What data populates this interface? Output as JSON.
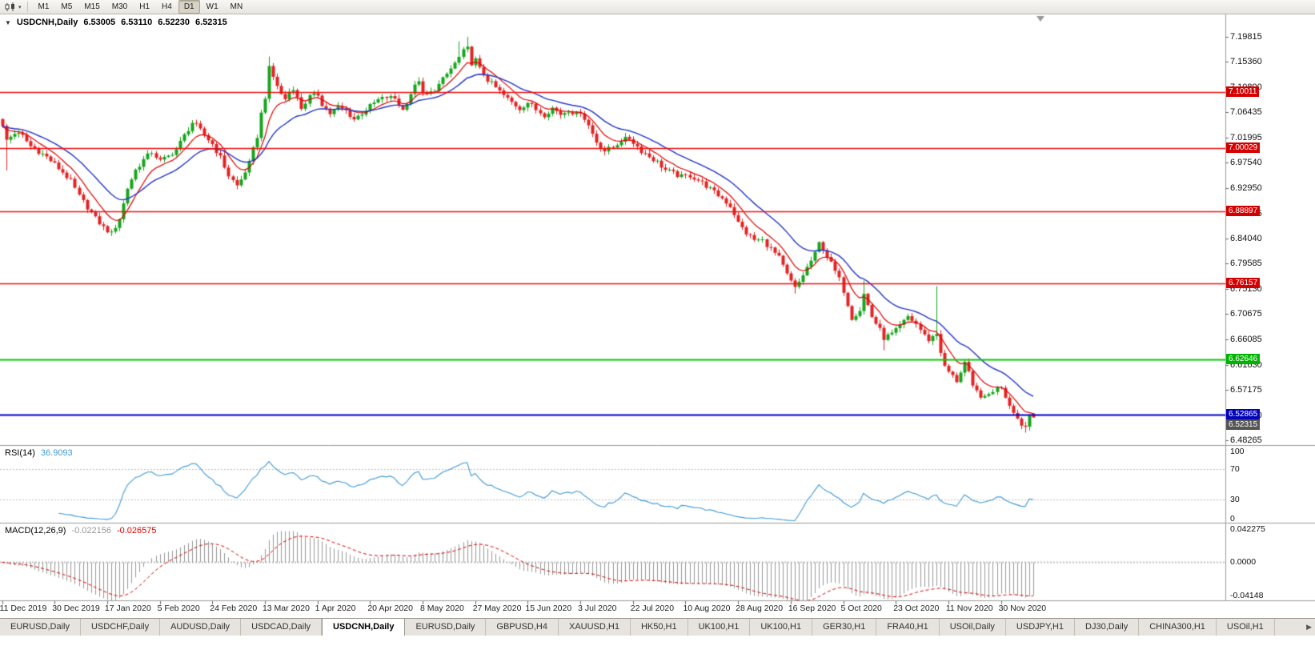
{
  "toolbar": {
    "dropdown_arrow": "▾",
    "timeframes": [
      {
        "label": "M1",
        "active": false
      },
      {
        "label": "M5",
        "active": false
      },
      {
        "label": "M15",
        "active": false
      },
      {
        "label": "M30",
        "active": false
      },
      {
        "label": "H1",
        "active": false
      },
      {
        "label": "H4",
        "active": false
      },
      {
        "label": "D1",
        "active": true
      },
      {
        "label": "W1",
        "active": false
      },
      {
        "label": "MN",
        "active": false
      }
    ]
  },
  "chart_header": {
    "collapse_icon": "▼",
    "symbol": "USDCNH,Daily",
    "open": "6.53005",
    "high": "6.53110",
    "low": "6.52230",
    "close": "6.52315"
  },
  "price_axis": {
    "labels": [
      "7.19815",
      "7.15360",
      "7.10890",
      "7.06435",
      "7.01995",
      "6.97540",
      "6.92950",
      "6.88495",
      "6.84040",
      "6.79585",
      "6.75130",
      "6.70675",
      "6.66085",
      "6.61630",
      "6.57175",
      "6.52720",
      "6.48265"
    ]
  },
  "hlines": [
    {
      "label": "7.10011",
      "price": 7.10011,
      "line_color": "#ee1111",
      "tag_color": "#d40000",
      "width": 1.5
    },
    {
      "label": "7.00029",
      "price": 7.00029,
      "line_color": "#ee1111",
      "tag_color": "#d40000",
      "width": 1.5
    },
    {
      "label": "6.88897",
      "price": 6.88897,
      "line_color": "#ee1111",
      "tag_color": "#d40000",
      "width": 1.5
    },
    {
      "label": "6.76157",
      "price": 6.76157,
      "line_color": "#ee1111",
      "tag_color": "#d40000",
      "width": 1.5
    },
    {
      "label": "6.62646",
      "price": 6.62646,
      "line_color": "#00cc00",
      "tag_color": "#00b400",
      "width": 2
    },
    {
      "label": "6.52865",
      "price": 6.52865,
      "line_color": "#0000cc",
      "tag_color": "#0000bb",
      "width": 2
    }
  ],
  "current_price_tag": {
    "label": "6.52315",
    "price": 6.52315,
    "tag_color": "#555555"
  },
  "date_axis": {
    "labels": [
      "11 Dec 2019",
      "30 Dec 2019",
      "17 Jan 2020",
      "5 Feb 2020",
      "24 Feb 2020",
      "13 Mar 2020",
      "1 Apr 2020",
      "20 Apr 2020",
      "8 May 2020",
      "27 May 2020",
      "15 Jun 2020",
      "3 Jul 2020",
      "22 Jul 2020",
      "10 Aug 2020",
      "28 Aug 2020",
      "16 Sep 2020",
      "5 Oct 2020",
      "23 Oct 2020",
      "11 Nov 2020",
      "30 Nov 2020"
    ]
  },
  "rsi_panel": {
    "name": "RSI(14)",
    "value": "36.9093",
    "line_color": "#3f9ad8",
    "levels": [
      {
        "label": "100",
        "value": 100
      },
      {
        "label": "70",
        "value": 70
      },
      {
        "label": "30",
        "value": 30
      },
      {
        "label": "0",
        "value": 0
      }
    ]
  },
  "macd_panel": {
    "name": "MACD(12,26,9)",
    "main_value": "-0.022156",
    "signal_value": "-0.026575",
    "hist_color": "#979797",
    "signal_color": "#dd0000",
    "axis_labels": [
      {
        "label": "0.042275",
        "value": 0.042275
      },
      {
        "label": "0.0000",
        "value": 0
      },
      {
        "label": "-0.04148",
        "value": -0.04148
      }
    ]
  },
  "tabs": {
    "scroll_right": "▶",
    "items": [
      {
        "label": "EURUSD,Daily",
        "active": false
      },
      {
        "label": "USDCHF,Daily",
        "active": false
      },
      {
        "label": "AUDUSD,Daily",
        "active": false
      },
      {
        "label": "USDCAD,Daily",
        "active": false
      },
      {
        "label": "USDCNH,Daily",
        "active": true
      },
      {
        "label": "EURUSD,Daily",
        "active": false
      },
      {
        "label": "GBPUSD,H4",
        "active": false
      },
      {
        "label": "XAUUSD,H1",
        "active": false
      },
      {
        "label": "HK50,H1",
        "active": false
      },
      {
        "label": "UK100,H1",
        "active": false
      },
      {
        "label": "UK100,H1",
        "active": false
      },
      {
        "label": "GER30,H1",
        "active": false
      },
      {
        "label": "FRA40,H1",
        "active": false
      },
      {
        "label": "USOil,Daily",
        "active": false
      },
      {
        "label": "USDJPY,H1",
        "active": false
      },
      {
        "label": "DJ30,Daily",
        "active": false
      },
      {
        "label": "CHINA300,H1",
        "active": false
      },
      {
        "label": "USOil,H1",
        "active": false
      }
    ]
  },
  "chart_data": {
    "type": "candlestick",
    "symbol": "USDCNH",
    "timeframe": "Daily",
    "n_candles": 256,
    "right_margin_candles": 47,
    "price_min": 6.4741,
    "price_max": 7.2379,
    "up_color": "#17a51d",
    "down_color": "#e42222",
    "ma_fast": {
      "type": "EMA",
      "period": 8,
      "color": "#e00000"
    },
    "ma_slow": {
      "type": "EMA",
      "period": 20,
      "color": "#2335cb"
    },
    "rsi_period": 14,
    "macd": [
      12,
      26,
      9
    ],
    "macd_range": [
      -0.04148,
      0.042275
    ],
    "noise": 0.009,
    "date_label_step": 13,
    "close_path": [
      [
        0,
        7.038
      ],
      [
        1,
        7.015
      ],
      [
        3,
        7.028
      ],
      [
        5,
        7.022
      ],
      [
        7,
        7.004
      ],
      [
        9,
        6.995
      ],
      [
        11,
        6.985
      ],
      [
        13,
        6.972
      ],
      [
        15,
        6.958
      ],
      [
        17,
        6.942
      ],
      [
        19,
        6.915
      ],
      [
        21,
        6.896
      ],
      [
        23,
        6.876
      ],
      [
        25,
        6.86
      ],
      [
        27,
        6.849
      ],
      [
        28,
        6.862
      ],
      [
        29,
        6.876
      ],
      [
        30,
        6.902
      ],
      [
        31,
        6.93
      ],
      [
        33,
        6.962
      ],
      [
        35,
        6.98
      ],
      [
        37,
        6.994
      ],
      [
        39,
        6.978
      ],
      [
        41,
        6.986
      ],
      [
        43,
        6.999
      ],
      [
        45,
        7.023
      ],
      [
        47,
        7.046
      ],
      [
        48,
        7.04
      ],
      [
        50,
        7.024
      ],
      [
        52,
        7.008
      ],
      [
        54,
        6.984
      ],
      [
        56,
        6.952
      ],
      [
        58,
        6.934
      ],
      [
        59,
        6.945
      ],
      [
        61,
        6.974
      ],
      [
        63,
        7.022
      ],
      [
        64,
        7.062
      ],
      [
        65,
        7.092
      ],
      [
        66,
        7.142
      ],
      [
        67,
        7.127
      ],
      [
        68,
        7.112
      ],
      [
        69,
        7.096
      ],
      [
        70,
        7.088
      ],
      [
        71,
        7.101
      ],
      [
        72,
        7.108
      ],
      [
        73,
        7.089
      ],
      [
        74,
        7.072
      ],
      [
        76,
        7.092
      ],
      [
        78,
        7.096
      ],
      [
        79,
        7.079
      ],
      [
        81,
        7.062
      ],
      [
        83,
        7.073
      ],
      [
        85,
        7.067
      ],
      [
        87,
        7.052
      ],
      [
        89,
        7.063
      ],
      [
        91,
        7.075
      ],
      [
        93,
        7.086
      ],
      [
        95,
        7.091
      ],
      [
        97,
        7.089
      ],
      [
        99,
        7.068
      ],
      [
        101,
        7.098
      ],
      [
        103,
        7.122
      ],
      [
        104,
        7.095
      ],
      [
        106,
        7.099
      ],
      [
        108,
        7.113
      ],
      [
        110,
        7.132
      ],
      [
        112,
        7.151
      ],
      [
        114,
        7.172
      ],
      [
        115,
        7.177
      ],
      [
        116,
        7.152
      ],
      [
        117,
        7.157
      ],
      [
        118,
        7.141
      ],
      [
        120,
        7.122
      ],
      [
        122,
        7.108
      ],
      [
        124,
        7.094
      ],
      [
        126,
        7.082
      ],
      [
        128,
        7.071
      ],
      [
        130,
        7.082
      ],
      [
        132,
        7.069
      ],
      [
        134,
        7.06
      ],
      [
        136,
        7.072
      ],
      [
        138,
        7.061
      ],
      [
        140,
        7.068
      ],
      [
        142,
        7.061
      ],
      [
        143,
        7.066
      ],
      [
        145,
        7.041
      ],
      [
        147,
        7.012
      ],
      [
        149,
        6.996
      ],
      [
        151,
        7.002
      ],
      [
        153,
        7.015
      ],
      [
        155,
        7.018
      ],
      [
        156,
        7.011
      ],
      [
        158,
        6.996
      ],
      [
        160,
        6.986
      ],
      [
        162,
        6.976
      ],
      [
        164,
        6.962
      ],
      [
        166,
        6.956
      ],
      [
        168,
        6.95
      ],
      [
        170,
        6.952
      ],
      [
        172,
        6.944
      ],
      [
        174,
        6.934
      ],
      [
        176,
        6.922
      ],
      [
        178,
        6.912
      ],
      [
        180,
        6.898
      ],
      [
        181,
        6.884
      ],
      [
        182,
        6.868
      ],
      [
        184,
        6.85
      ],
      [
        186,
        6.838
      ],
      [
        188,
        6.837
      ],
      [
        190,
        6.822
      ],
      [
        192,
        6.806
      ],
      [
        194,
        6.776
      ],
      [
        196,
        6.752
      ],
      [
        197,
        6.763
      ],
      [
        199,
        6.789
      ],
      [
        201,
        6.813
      ],
      [
        202,
        6.832
      ],
      [
        203,
        6.823
      ],
      [
        205,
        6.796
      ],
      [
        207,
        6.768
      ],
      [
        208,
        6.748
      ],
      [
        210,
        6.7
      ],
      [
        212,
        6.714
      ],
      [
        213,
        6.742
      ],
      [
        214,
        6.722
      ],
      [
        215,
        6.702
      ],
      [
        217,
        6.678
      ],
      [
        218,
        6.664
      ],
      [
        220,
        6.671
      ],
      [
        221,
        6.677
      ],
      [
        223,
        6.693
      ],
      [
        224,
        6.702
      ],
      [
        226,
        6.689
      ],
      [
        228,
        6.668
      ],
      [
        229,
        6.661
      ],
      [
        231,
        6.672
      ],
      [
        232,
        6.64
      ],
      [
        233,
        6.612
      ],
      [
        234,
        6.604
      ],
      [
        236,
        6.588
      ],
      [
        238,
        6.621
      ],
      [
        239,
        6.601
      ],
      [
        240,
        6.576
      ],
      [
        242,
        6.562
      ],
      [
        243,
        6.557
      ],
      [
        245,
        6.571
      ],
      [
        247,
        6.578
      ],
      [
        248,
        6.561
      ],
      [
        249,
        6.546
      ],
      [
        250,
        6.535
      ],
      [
        251,
        6.521
      ],
      [
        252,
        6.511
      ],
      [
        253,
        6.507
      ],
      [
        254,
        6.527
      ],
      [
        255,
        6.52315
      ]
    ],
    "spikes": [
      {
        "i": 1,
        "low": 6.961
      },
      {
        "i": 27,
        "low": 6.8448
      },
      {
        "i": 66,
        "high": 7.1632
      },
      {
        "i": 113,
        "high": 7.19
      },
      {
        "i": 115,
        "high": 7.1981
      },
      {
        "i": 196,
        "low": 6.7428
      },
      {
        "i": 213,
        "high": 6.766
      },
      {
        "i": 218,
        "low": 6.642
      },
      {
        "i": 231,
        "high": 6.756
      },
      {
        "i": 253,
        "low": 6.4962
      }
    ]
  }
}
